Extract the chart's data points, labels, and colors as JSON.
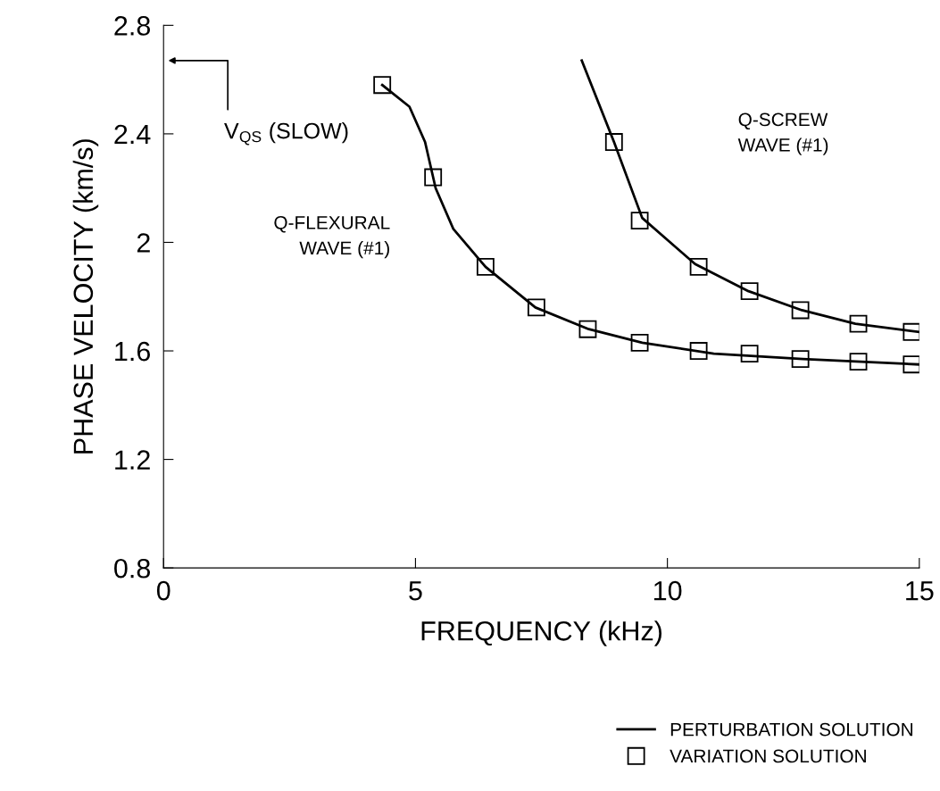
{
  "chart_data": {
    "type": "line",
    "xlabel": "FREQUENCY (kHz)",
    "ylabel": "PHASE VELOCITY (km/s)",
    "xlim": [
      0,
      15
    ],
    "xticks": [
      0,
      5,
      10,
      15
    ],
    "ylim": [
      0.8,
      2.8
    ],
    "yticks": [
      0.8,
      1.2,
      {
        "value": 1.6,
        "label": "1.6"
      },
      2,
      2.4,
      2.8
    ],
    "grid": false,
    "legend": "bottom right",
    "series": [
      {
        "name": "PERTURBATION SOLUTION",
        "color": "#000000",
        "marker": "none",
        "line_style": "solid",
        "x": [
          4.34,
          4.88,
          5.19,
          5.4,
          5.75,
          6.39,
          7.38,
          8.44,
          9.5,
          10.92,
          12.69,
          14.99
        ],
        "values": [
          2.58,
          2.5,
          2.37,
          2.2,
          2.05,
          1.91,
          1.76,
          1.68,
          1.63,
          1.59,
          1.57,
          1.55
        ]
      },
      {
        "color": "#000000",
        "marker": "none",
        "line_style": "solid",
        "x": [
          8.3,
          8.94,
          9.5,
          10.55,
          11.61,
          12.67,
          13.73,
          14.99
        ],
        "values": [
          2.67,
          2.37,
          2.09,
          1.92,
          1.82,
          1.75,
          1.7,
          1.67
        ]
      },
      {
        "type": "scatter",
        "name": "VARIATION SOLUTION",
        "color": "#000000",
        "marker": "square",
        "x": [
          4.34,
          5.35,
          6.39,
          7.4,
          8.42,
          9.45,
          10.62,
          11.63,
          12.64,
          13.79,
          14.85
        ],
        "values": [
          2.58,
          2.24,
          1.91,
          1.76,
          1.68,
          1.63,
          1.6,
          1.59,
          1.57,
          1.56,
          1.55
        ]
      },
      {
        "type": "scatter",
        "color": "#000000",
        "marker": "square",
        "x": [
          8.94,
          9.45,
          10.62,
          11.63,
          12.64,
          13.79,
          14.85
        ],
        "values": [
          2.37,
          2.08,
          1.91,
          1.82,
          1.75,
          1.7,
          1.67
        ]
      }
    ],
    "annotations": [
      "V$_{QS}$ (SLOW)",
      "Q-FLEXURAL\nWAVE (#1)",
      "Q-SCREW\nWAVE (#1)"
    ]
  }
}
